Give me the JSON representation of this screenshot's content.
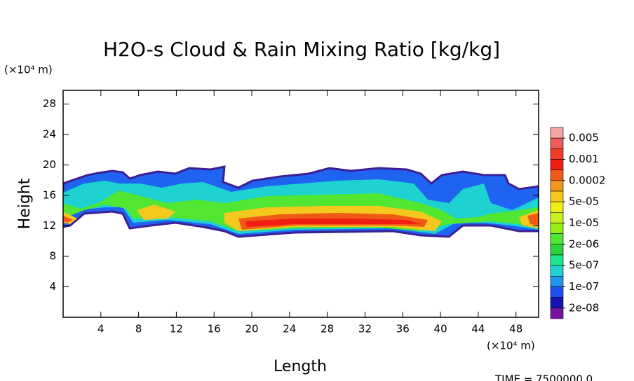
{
  "chart_data": {
    "type": "contour",
    "title": "H2O-s Cloud & Rain Mixing Ratio [kg/kg]",
    "x_label": "Length",
    "x_unit": "(×10⁴ m)",
    "y_label": "Height",
    "y_unit": "(×10⁴ m)",
    "footer": "TIME = 7500000.0",
    "xlim": [
      0,
      50.4
    ],
    "xticks": [
      4,
      8,
      12,
      16,
      20,
      24,
      28,
      32,
      36,
      40,
      44,
      48
    ],
    "ylim": [
      0,
      29.8
    ],
    "yticks": [
      4,
      8,
      12,
      16,
      20,
      24,
      28
    ],
    "colorbar_colors": [
      "#f4a6a6",
      "#f05a5a",
      "#f03c28",
      "#f01e14",
      "#f05a14",
      "#f5961e",
      "#f5c81e",
      "#f0f014",
      "#c8f01e",
      "#96f014",
      "#50e632",
      "#28d23c",
      "#1ee68c",
      "#1ed2d2",
      "#1e96f0",
      "#1e50f0",
      "#1414b4",
      "#7814a0"
    ],
    "colorbar_ticks": [
      0.005,
      0.001,
      0.0002,
      {
        "value": 5e-05,
        "label": "5e-05"
      },
      {
        "value": 1e-05,
        "label": "1e-05"
      },
      {
        "value": 2e-06,
        "label": "2e-06"
      },
      {
        "value": 5e-07,
        "label": "5e-07"
      },
      {
        "value": 1e-07,
        "label": "1e-07"
      },
      {
        "value": 2e-08,
        "label": "2e-08"
      }
    ]
  }
}
